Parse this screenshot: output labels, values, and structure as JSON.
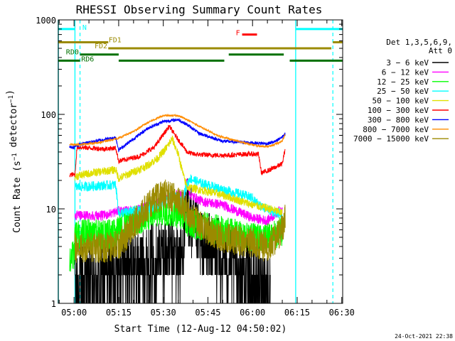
{
  "chart_data": {
    "type": "line",
    "title": "RHESSI Observing Summary Count Rates",
    "xlabel": "Start Time (12-Aug-12 04:50:02)",
    "ylabel": "Count Rate (s⁻¹ detector⁻¹)",
    "yscale": "log",
    "ylim": [
      1,
      1000
    ],
    "xlim_minutes": [
      4.7,
      100.3
    ],
    "x_tick_labels": [
      {
        "label": "05:00",
        "min": 10
      },
      {
        "label": "05:15",
        "min": 25
      },
      {
        "label": "05:30",
        "min": 40
      },
      {
        "label": "05:45",
        "min": 55
      },
      {
        "label": "06:00",
        "min": 70
      },
      {
        "label": "06:15",
        "min": 85
      },
      {
        "label": "06:30",
        "min": 100
      }
    ],
    "y_tick_labels": [
      {
        "label": "1",
        "value": 1
      },
      {
        "label": "10",
        "value": 10
      },
      {
        "label": "100",
        "value": 100
      },
      {
        "label": "1000",
        "value": 1000
      }
    ],
    "legend_header": [
      "Det 1,3,5,6,9,",
      "Att 0"
    ],
    "legend_placement": "right",
    "series": [
      {
        "name": "3 - 6 keV",
        "label": "3 − 6 keV",
        "color": "#000000",
        "base": [
          [
            10.3,
            1.6
          ],
          [
            20,
            1.8
          ],
          [
            25,
            2.6
          ],
          [
            32,
            2.6
          ],
          [
            37,
            3.0
          ],
          [
            40,
            3.6
          ],
          [
            42,
            3.4
          ],
          [
            46,
            3.0
          ],
          [
            48,
            10.0
          ],
          [
            50,
            6.0
          ],
          [
            53,
            4.0
          ],
          [
            60,
            3.0
          ],
          [
            70,
            1.8
          ],
          [
            76,
            1.5
          ]
        ],
        "noise": 0.35
      },
      {
        "name": "6 - 12 keV",
        "label": "6 − 12 keV",
        "color": "#ff00ff",
        "base": [
          [
            10.3,
            8.5
          ],
          [
            20,
            8.5
          ],
          [
            25,
            9.5
          ],
          [
            30,
            9.5
          ],
          [
            36,
            11
          ],
          [
            40,
            13
          ],
          [
            44,
            14
          ],
          [
            47,
            14
          ],
          [
            48,
            20
          ],
          [
            49,
            14
          ],
          [
            53,
            12
          ],
          [
            60,
            11
          ],
          [
            70,
            8
          ],
          [
            75,
            7.5
          ],
          [
            78,
            9
          ],
          [
            80,
            10
          ]
        ],
        "noise": 0.12
      },
      {
        "name": "12 - 25 keV",
        "label": "12 − 25 keV",
        "color": "#00ff00",
        "base": [
          [
            8.5,
            3.2
          ],
          [
            10,
            3.2
          ],
          [
            10.3,
            5.5
          ],
          [
            20,
            5.5
          ],
          [
            24,
            5.5
          ],
          [
            25,
            6.5
          ],
          [
            32,
            8
          ],
          [
            40,
            10
          ],
          [
            47,
            9
          ],
          [
            48,
            7.5
          ],
          [
            55,
            6.5
          ],
          [
            70,
            5
          ],
          [
            76,
            5
          ],
          [
            78,
            5.5
          ],
          [
            80,
            6
          ]
        ],
        "noise": 0.15
      },
      {
        "name": "25 - 50 keV",
        "label": "25 − 50 keV",
        "color": "#00ffff",
        "base": [
          [
            10.3,
            17
          ],
          [
            24,
            18
          ],
          [
            25,
            9
          ],
          [
            36,
            10
          ],
          [
            40,
            12
          ],
          [
            43,
            14
          ],
          [
            46,
            12
          ],
          [
            48,
            18
          ],
          [
            49,
            21
          ],
          [
            52,
            19
          ],
          [
            60,
            16
          ],
          [
            67,
            14
          ],
          [
            70,
            13
          ],
          [
            72,
            11
          ],
          [
            78,
            9
          ],
          [
            80,
            9
          ]
        ],
        "noise": 0.12
      },
      {
        "name": "50 - 100 keV",
        "label": "50 − 100 keV",
        "color": "#e0e000",
        "base": [
          [
            10.3,
            22
          ],
          [
            16,
            24
          ],
          [
            24,
            26
          ],
          [
            25,
            21
          ],
          [
            34,
            28
          ],
          [
            38,
            34
          ],
          [
            41,
            44
          ],
          [
            43,
            55
          ],
          [
            45,
            38
          ],
          [
            47,
            21
          ],
          [
            48,
            17
          ],
          [
            52,
            16
          ],
          [
            56,
            15
          ],
          [
            60,
            14
          ],
          [
            70,
            11
          ],
          [
            76,
            10
          ],
          [
            80,
            9
          ]
        ],
        "noise": 0.1
      },
      {
        "name": "100 - 300 keV",
        "label": "100 − 300 keV",
        "color": "#ff0000",
        "base": [
          [
            8.5,
            23
          ],
          [
            10.3,
            23
          ],
          [
            11,
            45
          ],
          [
            20,
            43
          ],
          [
            24,
            44
          ],
          [
            25,
            32
          ],
          [
            32,
            36
          ],
          [
            37,
            45
          ],
          [
            42,
            75
          ],
          [
            44,
            60
          ],
          [
            48,
            40
          ],
          [
            50,
            38
          ],
          [
            56,
            37
          ],
          [
            62,
            37
          ],
          [
            68,
            38
          ],
          [
            72,
            38
          ],
          [
            73,
            24
          ],
          [
            76,
            26
          ],
          [
            80,
            30
          ],
          [
            81,
            44
          ]
        ],
        "noise": 0.06
      },
      {
        "name": "300 - 800 keV",
        "label": "300 − 800 keV",
        "color": "#0000ff",
        "base": [
          [
            8.5,
            45
          ],
          [
            10,
            45
          ],
          [
            10.3,
            46
          ],
          [
            14,
            50
          ],
          [
            20,
            54
          ],
          [
            24,
            57
          ],
          [
            25,
            42
          ],
          [
            30,
            55
          ],
          [
            35,
            72
          ],
          [
            40,
            84
          ],
          [
            45,
            88
          ],
          [
            48,
            78
          ],
          [
            52,
            63
          ],
          [
            60,
            52
          ],
          [
            70,
            50
          ],
          [
            75,
            49
          ],
          [
            78,
            52
          ],
          [
            80,
            58
          ],
          [
            81,
            62
          ]
        ],
        "noise": 0.04
      },
      {
        "name": "800 - 7000 keV",
        "label": "800 − 7000 keV",
        "color": "#ff8c00",
        "base": [
          [
            8.5,
            48
          ],
          [
            12,
            48
          ],
          [
            18,
            50
          ],
          [
            25,
            56
          ],
          [
            30,
            66
          ],
          [
            35,
            83
          ],
          [
            40,
            97
          ],
          [
            45,
            97
          ],
          [
            48,
            88
          ],
          [
            52,
            75
          ],
          [
            58,
            60
          ],
          [
            65,
            52
          ],
          [
            72,
            46
          ],
          [
            76,
            46
          ],
          [
            80,
            52
          ],
          [
            81,
            62
          ]
        ],
        "noise": 0.025
      },
      {
        "name": "7000 - 15000 keV",
        "label": "7000 − 15000 keV",
        "color": "#9b8a00",
        "base": [
          [
            10.3,
            4
          ],
          [
            20,
            4
          ],
          [
            25,
            4.2
          ],
          [
            30,
            7
          ],
          [
            35,
            11
          ],
          [
            38,
            13.5
          ],
          [
            41,
            14.5
          ],
          [
            44,
            13.5
          ],
          [
            47,
            11
          ],
          [
            50,
            8
          ],
          [
            55,
            6
          ],
          [
            60,
            5
          ],
          [
            70,
            4.5
          ],
          [
            75,
            4
          ],
          [
            78,
            5
          ],
          [
            80,
            6.5
          ],
          [
            81,
            8
          ]
        ],
        "noise": 0.15
      }
    ],
    "annotations": {
      "N": {
        "label": "N",
        "color": "#00ffff",
        "y": 800,
        "segments": [
          [
            4.7,
            10.3
          ],
          [
            84.5,
            100.3
          ]
        ]
      },
      "F": {
        "label": "F",
        "color": "#ff0000",
        "y": 700,
        "segments": [
          [
            66.5,
            71.5
          ]
        ]
      },
      "FD1": {
        "label": "FD1",
        "color": "#9b8a00",
        "y": 580,
        "segments": [
          [
            4.7,
            21.5
          ],
          [
            97,
            100.3
          ]
        ]
      },
      "FD2": {
        "label": "FD2",
        "color": "#9b8a00",
        "y": 500,
        "segments": [
          [
            21.5,
            96.5
          ]
        ]
      },
      "RD0": {
        "label": "RD0",
        "color": "#007000",
        "y": 430,
        "segments": [
          [
            12,
            25
          ],
          [
            62,
            80.5
          ]
        ]
      },
      "RD6": {
        "label": "RD6",
        "color": "#007000",
        "y": 370,
        "segments": [
          [
            4.7,
            12
          ],
          [
            25,
            60.5
          ],
          [
            82.5,
            100.3
          ]
        ]
      },
      "saa_night_bounds_minutes": [
        10.3,
        84.5
      ],
      "night_dashed_minutes": [
        12,
        97
      ]
    },
    "footer_date": "24-Oct-2021 22:38"
  }
}
